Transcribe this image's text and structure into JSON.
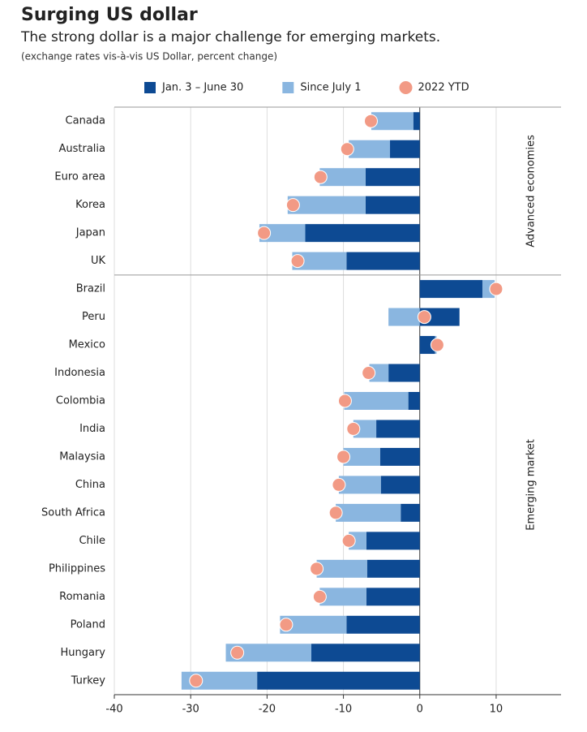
{
  "chart_data": {
    "type": "bar",
    "stacked": true,
    "title": "Surging US dollar",
    "subtitle": "The strong dollar is a major challenge for emerging markets.",
    "note": "(exchange rates vis-à-vis US Dollar, percent change)",
    "groups": [
      {
        "label": "Advanced economies",
        "categories": [
          "Canada",
          "Australia",
          "Euro area",
          "Korea",
          "Japan",
          "UK"
        ]
      },
      {
        "label": "Emerging market",
        "categories": [
          "Brazil",
          "Peru",
          "Mexico",
          "Indonesia",
          "Colombia",
          "India",
          "Malaysia",
          "China",
          "South Africa",
          "Chile",
          "Philippines",
          "Romania",
          "Poland",
          "Hungary",
          "Turkey"
        ]
      }
    ],
    "series": [
      {
        "name": "Jan. 3 – June 30",
        "color": "#0d4a93",
        "style": "bar",
        "values": [
          [
            -0.85,
            -3.9,
            -7.1,
            -7.1,
            -15.0,
            -9.6
          ],
          [
            8.2,
            5.2,
            2.0,
            -4.1,
            -1.5,
            -5.7,
            -5.2,
            -5.1,
            -2.5,
            -7.0,
            -6.9,
            -7.0,
            -9.6,
            -14.2,
            -21.3
          ]
        ]
      },
      {
        "name": "Since July 1",
        "color": "#8ab6e0",
        "style": "bar",
        "values": [
          [
            -5.5,
            -5.4,
            -6.0,
            -10.2,
            -6.0,
            -7.1
          ],
          [
            1.6,
            -4.1,
            0.2,
            -2.5,
            -8.4,
            -3.0,
            -4.8,
            -5.5,
            -8.5,
            -2.3,
            -6.6,
            -6.1,
            -8.7,
            -11.2,
            -9.9
          ]
        ]
      },
      {
        "name": "2022 YTD",
        "color": "#f29a85",
        "style": "dot",
        "values": [
          [
            -6.4,
            -9.5,
            -13.0,
            -16.6,
            -20.4,
            -16.0
          ],
          [
            10.0,
            0.6,
            2.3,
            -6.7,
            -9.8,
            -8.7,
            -10.0,
            -10.6,
            -11.0,
            -9.3,
            -13.5,
            -13.1,
            -17.5,
            -23.9,
            -29.3
          ]
        ]
      }
    ],
    "xlim": [
      -40,
      18.5
    ],
    "xticks": [
      -40,
      -30,
      -20,
      -10,
      0,
      10
    ],
    "grid": true
  }
}
